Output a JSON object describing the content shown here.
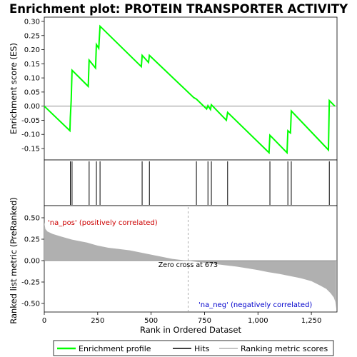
{
  "chart_data": {
    "type": "line",
    "title": "Enrichment plot: PROTEIN TRANSPORTER ACTIVITY",
    "top_panel": {
      "ylabel": "Enrichment score (ES)",
      "ylim": [
        -0.2,
        0.3
      ],
      "yticks": [
        -0.15,
        -0.1,
        -0.05,
        0.0,
        0.05,
        0.1,
        0.15,
        0.2,
        0.25,
        0.3
      ],
      "ytick_labels": [
        "-0.15",
        "-0.10",
        "-0.05",
        "0.00",
        "0.05",
        "0.10",
        "0.15",
        "0.20",
        "0.25",
        "0.30"
      ],
      "series": [
        {
          "name": "Enrichment profile",
          "color": "#00ff00",
          "x": [
            0,
            120,
            122,
            126,
            130,
            206,
            210,
            240,
            244,
            255,
            261,
            454,
            458,
            488,
            492,
            700,
            712,
            760,
            766,
            778,
            782,
            852,
            858,
            1052,
            1056,
            1136,
            1140,
            1152,
            1156,
            1330,
            1334,
            1360
          ],
          "y": [
            0.0,
            -0.087,
            -0.04,
            0.02,
            0.127,
            0.07,
            0.163,
            0.135,
            0.218,
            0.205,
            0.283,
            0.14,
            0.18,
            0.155,
            0.18,
            0.03,
            0.025,
            -0.01,
            0.002,
            -0.012,
            0.005,
            -0.05,
            -0.022,
            -0.165,
            -0.103,
            -0.165,
            -0.087,
            -0.095,
            -0.017,
            -0.155,
            0.02,
            0.0
          ]
        }
      ]
    },
    "hits": {
      "name": "Hits",
      "x": [
        122,
        130,
        210,
        244,
        261,
        458,
        492,
        712,
        766,
        782,
        858,
        1056,
        1140,
        1156,
        1334
      ]
    },
    "bottom_panel": {
      "ylabel": "Ranked list metric (PreRanked)",
      "xlabel": "Rank in Ordered Dataset",
      "ylim": [
        -0.6,
        0.6
      ],
      "yticks": [
        -0.5,
        -0.25,
        0.0,
        0.25,
        0.5
      ],
      "ytick_labels": [
        "-0.50",
        "-0.25",
        "0.00",
        "0.25",
        "0.50"
      ],
      "xlim": [
        0,
        1370
      ],
      "xticks": [
        0,
        250,
        500,
        750,
        1000,
        1250
      ],
      "xtick_labels": [
        "0",
        "250",
        "500",
        "750",
        "1,000",
        "1,250"
      ],
      "series": [
        {
          "name": "Ranking metric scores",
          "color": "#b0b0b0",
          "x": [
            0,
            5,
            15,
            40,
            80,
            130,
            200,
            250,
            300,
            350,
            400,
            450,
            500,
            550,
            600,
            650,
            673,
            700,
            750,
            800,
            850,
            900,
            950,
            1000,
            1050,
            1100,
            1150,
            1200,
            1250,
            1290,
            1320,
            1340,
            1355,
            1362,
            1366
          ],
          "y": [
            0.45,
            0.37,
            0.34,
            0.31,
            0.28,
            0.245,
            0.21,
            0.175,
            0.15,
            0.135,
            0.12,
            0.095,
            0.07,
            0.045,
            0.02,
            0.005,
            0.0,
            -0.01,
            -0.025,
            -0.04,
            -0.055,
            -0.07,
            -0.09,
            -0.11,
            -0.135,
            -0.155,
            -0.18,
            -0.205,
            -0.24,
            -0.29,
            -0.33,
            -0.38,
            -0.43,
            -0.48,
            -0.56
          ]
        }
      ],
      "zero_cross": 673,
      "annotations": [
        "'na_pos' (positively correlated)",
        "Zero cross at 673",
        "'na_neg' (negatively correlated)"
      ]
    },
    "color_bar": {
      "segments": [
        {
          "start": 0,
          "end": 25,
          "color": "#dd0000"
        },
        {
          "start": 25,
          "end": 150,
          "color": "#f03a3a"
        },
        {
          "start": 150,
          "end": 300,
          "color": "#ff6060"
        },
        {
          "start": 300,
          "end": 410,
          "color": "#ff8080"
        },
        {
          "start": 410,
          "end": 520,
          "color": "#ffa8a8"
        },
        {
          "start": 520,
          "end": 670,
          "color": "#ffc0e0"
        },
        {
          "start": 670,
          "end": 800,
          "color": "#d8d8f4"
        },
        {
          "start": 800,
          "end": 955,
          "color": "#c4c4f6"
        },
        {
          "start": 955,
          "end": 1055,
          "color": "#8888f4"
        },
        {
          "start": 1055,
          "end": 1125,
          "color": "#6060e6"
        },
        {
          "start": 1125,
          "end": 1265,
          "color": "#5040d8"
        },
        {
          "start": 1265,
          "end": 1370,
          "color": "#2c00c8"
        }
      ]
    },
    "legend": {
      "placement": "bottom",
      "items": [
        {
          "label": "Enrichment profile",
          "color": "#00ff00"
        },
        {
          "label": "Hits",
          "color": "#000000"
        },
        {
          "label": "Ranking metric scores",
          "color": "#b0b0b0"
        }
      ]
    }
  }
}
